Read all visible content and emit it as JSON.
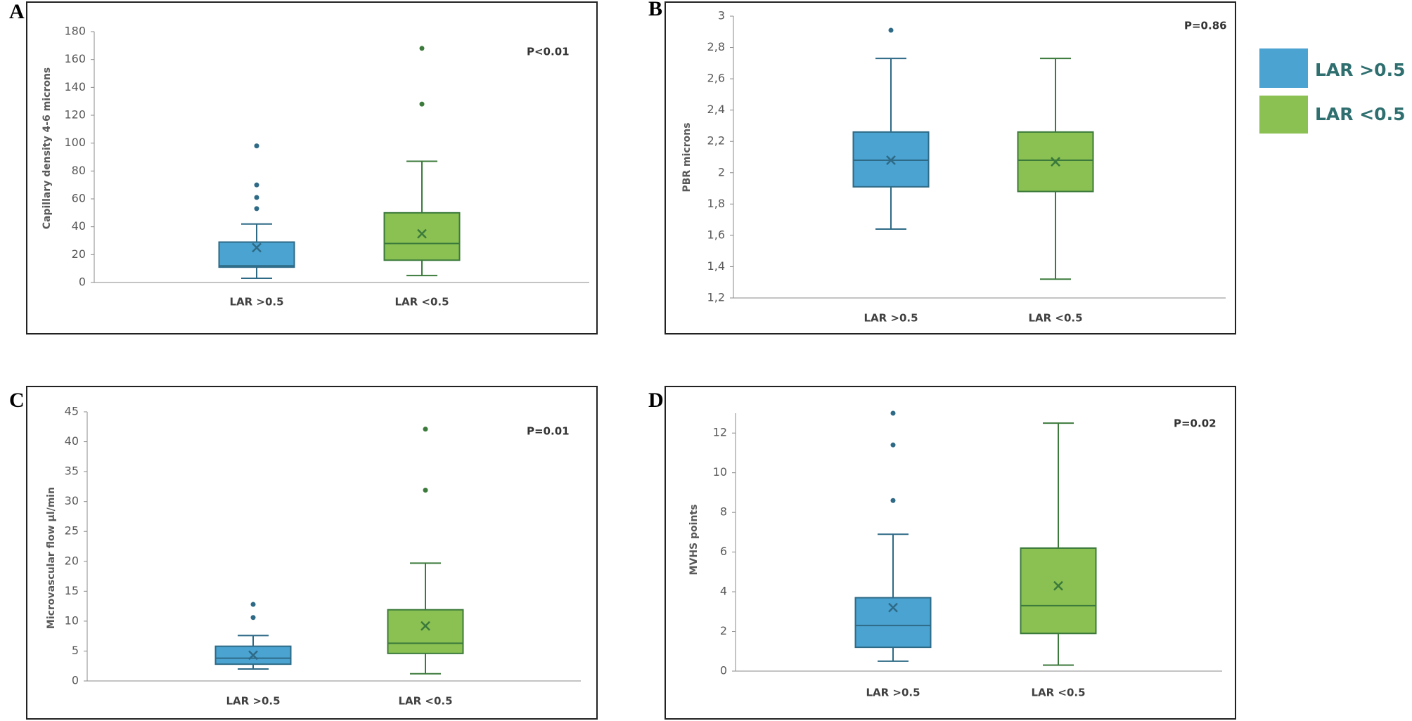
{
  "legend": [
    {
      "name": "LAR >0.5",
      "color": "#4ba3d1",
      "edge": "#2e6a86"
    },
    {
      "name": "LAR <0.5",
      "color": "#8bc152",
      "edge": "#3b7a3b"
    }
  ],
  "chart_data": [
    {
      "type": "box",
      "panel": "A",
      "annotation": "P<0.01",
      "y_label": "Capillary density 4-6 microns",
      "categories": [
        "LAR >0.5",
        "LAR <0.5"
      ],
      "ylim": [
        0,
        180
      ],
      "yticks": [
        0,
        20,
        40,
        60,
        80,
        100,
        120,
        140,
        160,
        180
      ],
      "boxes": [
        {
          "min": 3,
          "q1": 11,
          "median": 12,
          "q3": 29,
          "max": 42,
          "mean": 25,
          "outliers": [
            53,
            61,
            70,
            98
          ]
        },
        {
          "min": 5,
          "q1": 16,
          "median": 28,
          "q3": 50,
          "max": 87,
          "mean": 35,
          "outliers": [
            128,
            168
          ]
        }
      ]
    },
    {
      "type": "box",
      "panel": "B",
      "annotation": "P=0.86",
      "y_label": "PBR microns",
      "categories": [
        "LAR >0.5",
        "LAR <0.5"
      ],
      "ylim": [
        1.2,
        3
      ],
      "yticks": [
        {
          "value": 1.2,
          "label": "1,2"
        },
        {
          "value": 1.4,
          "label": "1,4"
        },
        {
          "value": 1.6,
          "label": "1,6"
        },
        {
          "value": 1.8,
          "label": "1,8"
        },
        2,
        {
          "value": 2.2,
          "label": "2,2"
        },
        {
          "value": 2.4,
          "label": "2,4"
        },
        {
          "value": 2.6,
          "label": "2,6"
        },
        {
          "value": 2.8,
          "label": "2,8"
        },
        3
      ],
      "boxes": [
        {
          "min": 1.64,
          "q1": 1.91,
          "median": 2.08,
          "q3": 2.26,
          "max": 2.73,
          "mean": 2.08,
          "outliers": [
            2.91
          ]
        },
        {
          "min": 1.32,
          "q1": 1.88,
          "median": 2.08,
          "q3": 2.26,
          "max": 2.73,
          "mean": 2.07,
          "outliers": []
        }
      ]
    },
    {
      "type": "box",
      "panel": "C",
      "annotation": "P=0.01",
      "y_label": "Microvascular flow  µl/min",
      "categories": [
        "LAR >0.5",
        "LAR <0.5"
      ],
      "ylim": [
        0,
        45
      ],
      "yticks": [
        0,
        5,
        10,
        15,
        20,
        25,
        30,
        35,
        40,
        45
      ],
      "boxes": [
        {
          "min": 2,
          "q1": 2.8,
          "median": 3.8,
          "q3": 5.8,
          "max": 7.6,
          "mean": 4.3,
          "outliers": [
            10.6,
            12.8
          ]
        },
        {
          "min": 1.2,
          "q1": 4.6,
          "median": 6.3,
          "q3": 11.9,
          "max": 19.7,
          "mean": 9.2,
          "outliers": [
            31.9,
            42.1
          ]
        }
      ]
    },
    {
      "type": "box",
      "panel": "D",
      "annotation": "P=0.02",
      "y_label": "MVHS points",
      "categories": [
        "LAR >0.5",
        "LAR <0.5"
      ],
      "ylim": [
        0,
        13
      ],
      "yticks": [
        0,
        2,
        4,
        6,
        8,
        10,
        12
      ],
      "boxes": [
        {
          "min": 0.5,
          "q1": 1.2,
          "median": 2.3,
          "q3": 3.7,
          "max": 6.9,
          "mean": 3.2,
          "outliers": [
            8.6,
            11.4,
            13
          ]
        },
        {
          "min": 0.3,
          "q1": 1.9,
          "median": 3.3,
          "q3": 6.2,
          "max": 12.5,
          "mean": 4.3,
          "outliers": []
        }
      ]
    }
  ]
}
